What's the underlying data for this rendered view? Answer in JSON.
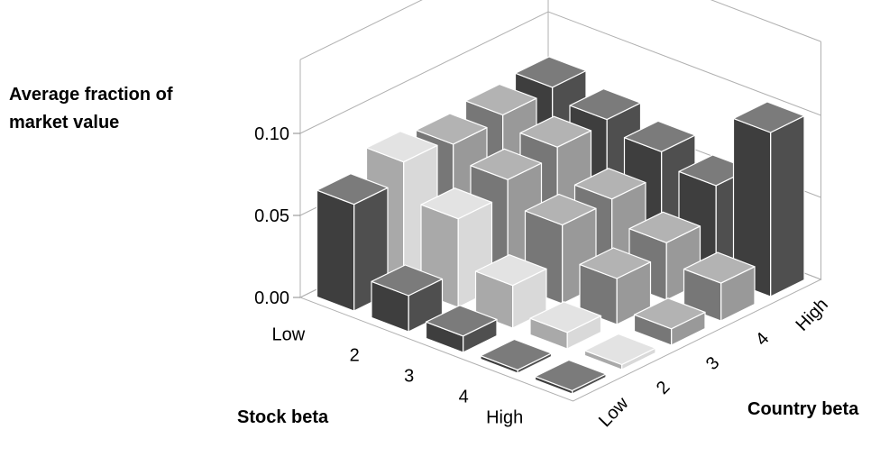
{
  "chart_data": {
    "type": "bar3d",
    "zlabel": "Average fraction of market value",
    "xlabel": "Stock beta",
    "ylabel": "Country beta",
    "stock_beta_categories": [
      "Low",
      "2",
      "3",
      "4",
      "High"
    ],
    "country_beta_categories": [
      "Low",
      "2",
      "3",
      "4",
      "High"
    ],
    "z_ticks": [
      "0.00",
      "0.05",
      "0.10"
    ],
    "zlim": [
      0,
      0.1
    ],
    "grid": true,
    "values": [
      [
        0.065,
        0.076,
        0.072,
        0.075,
        0.077
      ],
      [
        0.022,
        0.054,
        0.063,
        0.068,
        0.07
      ],
      [
        0.01,
        0.026,
        0.048,
        0.049,
        0.063
      ],
      [
        0.002,
        0.01,
        0.028,
        0.035,
        0.055
      ],
      [
        0.002,
        0.003,
        0.01,
        0.023,
        0.1
      ]
    ],
    "colors": [
      "#4f4f4f",
      "#d9d9d9",
      "#999999",
      "#999999",
      "#4f4f4f"
    ]
  }
}
